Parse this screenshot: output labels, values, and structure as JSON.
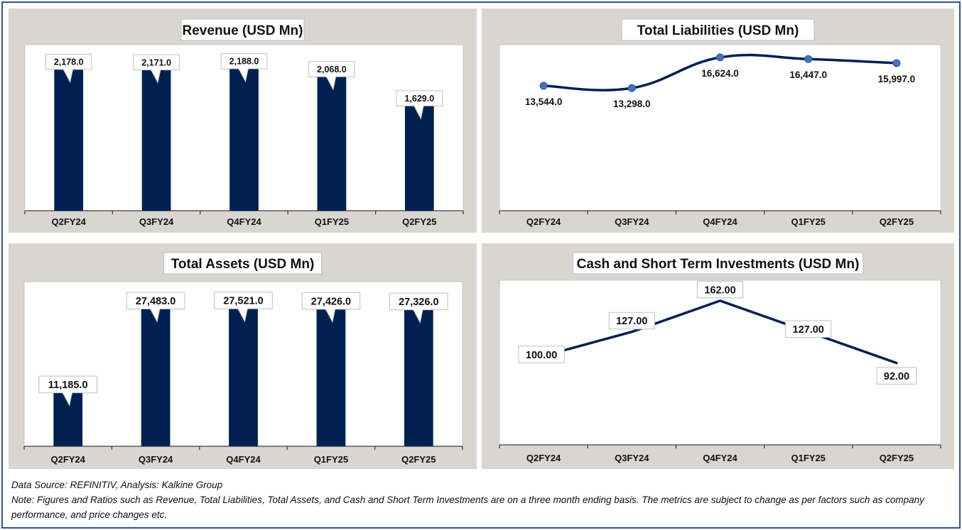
{
  "colors": {
    "bar": "#002052",
    "line": "#002052",
    "marker": "#4472c4",
    "panel_bg": "#d9d6d2",
    "plot_bg": "#ffffff",
    "frame": "#2f5496"
  },
  "chart_data": [
    {
      "id": "revenue",
      "type": "bar",
      "title": "Revenue (USD Mn)",
      "categories": [
        "Q2FY24",
        "Q3FY24",
        "Q4FY24",
        "Q1FY25",
        "Q2FY25"
      ],
      "values": [
        2178.0,
        2171.0,
        2188.0,
        2068.0,
        1629.0
      ],
      "labels": [
        "2,178.0",
        "2,171.0",
        "2,188.0",
        "2,068.0",
        "1,629.0"
      ],
      "ylim": [
        0,
        2500
      ],
      "grid": false
    },
    {
      "id": "liabilities",
      "type": "line",
      "title": "Total Liabilities (USD Mn)",
      "categories": [
        "Q2FY24",
        "Q3FY24",
        "Q4FY24",
        "Q1FY25",
        "Q2FY25"
      ],
      "values": [
        13544.0,
        13298.0,
        16624.0,
        16447.0,
        15997.0
      ],
      "labels": [
        "13,544.0",
        "13,298.0",
        "16,624.0",
        "16,447.0",
        "15,997.0"
      ],
      "ylim": [
        0,
        18000
      ],
      "smooth": true,
      "markers": true,
      "grid": false
    },
    {
      "id": "assets",
      "type": "bar",
      "title": "Total Assets (USD Mn)",
      "categories": [
        "Q2FY24",
        "Q3FY24",
        "Q4FY24",
        "Q1FY25",
        "Q2FY25"
      ],
      "values": [
        11185.0,
        27483.0,
        27521.0,
        27426.0,
        27326.0
      ],
      "labels": [
        "11,185.0",
        "27,483.0",
        "27,521.0",
        "27,426.0",
        "27,326.0"
      ],
      "ylim": [
        0,
        32000
      ],
      "grid": false
    },
    {
      "id": "cash",
      "type": "line",
      "title": "Cash and Short Term Investments (USD Mn)",
      "categories": [
        "Q2FY24",
        "Q3FY24",
        "Q4FY24",
        "Q1FY25",
        "Q2FY25"
      ],
      "values": [
        100.0,
        127.0,
        162.0,
        127.0,
        92.0
      ],
      "labels": [
        "100.00",
        "127.00",
        "162.00",
        "127.00",
        "92.00"
      ],
      "ylim": [
        0,
        185
      ],
      "smooth": false,
      "markers": false,
      "grid": false
    }
  ],
  "footer": {
    "source": "Data Source: REFINITIV, Analysis: Kalkine Group",
    "note": "Note: Figures and Ratios such as Revenue, Total Liabilities, Total Assets, and Cash and Short Term Investments are on a three month ending basis. The metrics are subject to change as per factors such as company performance, and price changes etc."
  }
}
